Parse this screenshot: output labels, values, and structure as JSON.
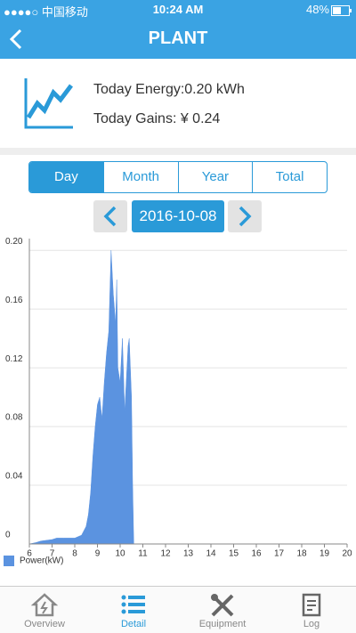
{
  "status_bar": {
    "carrier": "●●●●○ 中国移动",
    "time": "10:24 AM",
    "battery": "48%"
  },
  "header": {
    "title": "PLANT"
  },
  "summary": {
    "energy": "Today Energy:0.20 kWh",
    "gains": "Today Gains: ¥ 0.24"
  },
  "tabs": [
    "Day",
    "Month",
    "Year",
    "Total"
  ],
  "date": "2016-10-08",
  "chart_data": {
    "type": "area",
    "x": [
      6,
      6.3,
      6.5,
      7,
      7.2,
      7.5,
      8,
      8.3,
      8.5,
      8.6,
      8.7,
      8.8,
      8.9,
      9,
      9.1,
      9.2,
      9.3,
      9.4,
      9.5,
      9.6,
      9.7,
      9.8,
      9.85,
      9.9,
      10,
      10.1,
      10.2,
      10.35,
      10.4,
      10.5,
      10.55,
      10.6,
      11,
      12,
      13,
      14,
      15,
      16,
      17,
      18,
      19,
      20
    ],
    "series": [
      {
        "name": "Power(kW)",
        "color": "#5b93e0",
        "values": [
          0,
          0.001,
          0.002,
          0.003,
          0.004,
          0.004,
          0.004,
          0.006,
          0.012,
          0.02,
          0.035,
          0.06,
          0.08,
          0.095,
          0.1,
          0.085,
          0.11,
          0.13,
          0.145,
          0.2,
          0.17,
          0.15,
          0.18,
          0.12,
          0.11,
          0.14,
          0.09,
          0.135,
          0.14,
          0.1,
          0.04,
          0,
          0,
          0,
          0,
          0,
          0,
          0,
          0,
          0,
          0,
          0
        ]
      }
    ],
    "xlim": [
      6,
      20
    ],
    "xticks": [
      6,
      7,
      8,
      9,
      10,
      11,
      12,
      13,
      14,
      15,
      16,
      17,
      18,
      19,
      20
    ],
    "ylim": [
      0,
      0.208
    ],
    "yticks": [
      0,
      0.04,
      0.08,
      0.12,
      0.16,
      {
        "value": 0.2,
        "label": "0.20"
      }
    ],
    "grid": true
  },
  "nav": [
    "Overview",
    "Detail",
    "Equipment",
    "Log"
  ]
}
